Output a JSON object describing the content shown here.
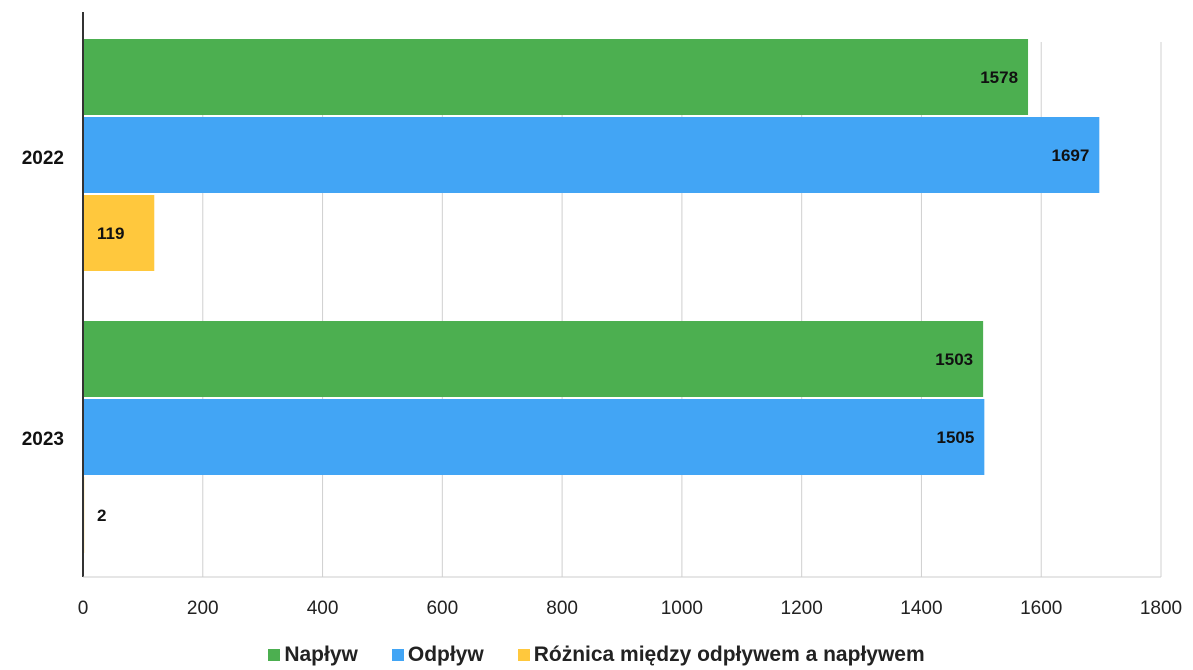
{
  "chart_data": {
    "type": "bar",
    "orientation": "horizontal",
    "categories": [
      "2022",
      "2023"
    ],
    "series": [
      {
        "name": "Napływ",
        "color": "#4caf50",
        "values": [
          1578,
          1503
        ]
      },
      {
        "name": "Odpływ",
        "color": "#42a5f5",
        "values": [
          1697,
          1505
        ]
      },
      {
        "name": "Różnica między odpływem a napływem",
        "color": "#ffc83d",
        "values": [
          119,
          2
        ]
      }
    ],
    "xlim": [
      0,
      1800
    ],
    "xticks": [
      0,
      200,
      400,
      600,
      800,
      1000,
      1200,
      1400,
      1600,
      1800
    ],
    "grid": true,
    "legend_position": "bottom",
    "data_labels": true
  }
}
